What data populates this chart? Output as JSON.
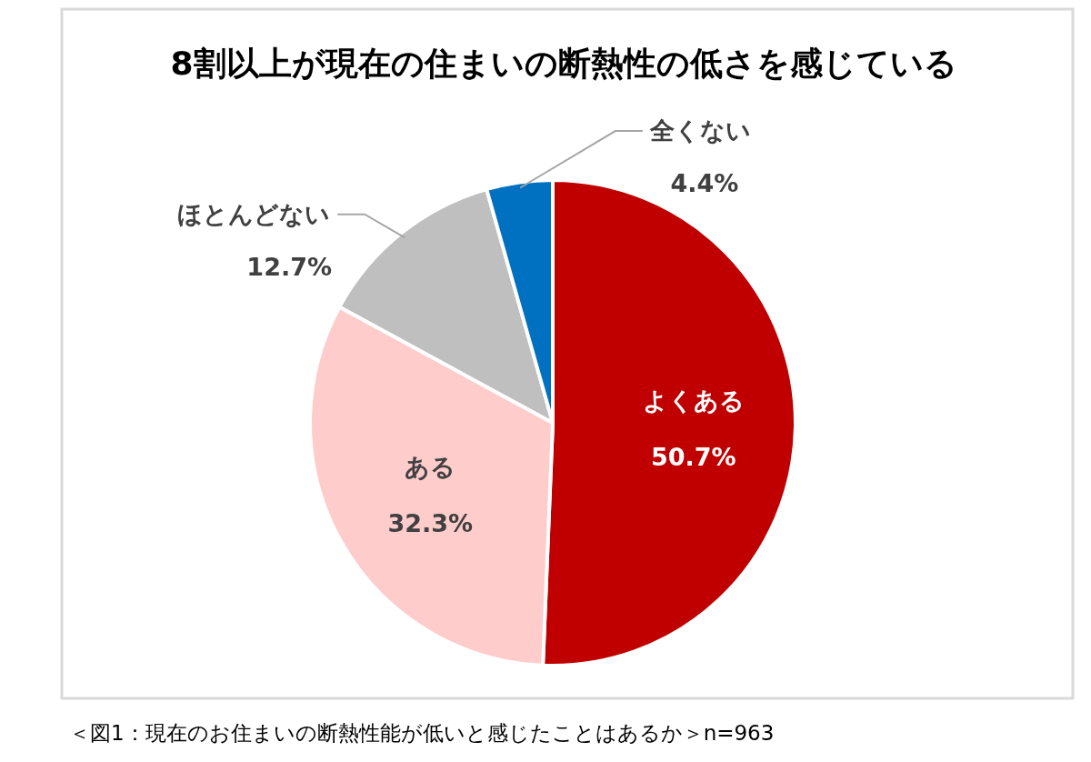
{
  "chart_data": {
    "type": "pie",
    "title": "8割以上が現在の住まいの断熱性の低さを感じている",
    "categories": [
      "よくある",
      "ある",
      "ほとんどない",
      "全くない"
    ],
    "values": [
      50.7,
      32.3,
      12.7,
      4.4
    ],
    "colors": [
      "#c00000",
      "#ffcccc",
      "#bfbfbf",
      "#0070c0"
    ],
    "value_labels": [
      "50.7%",
      "32.3%",
      "12.7%",
      "4.4%"
    ],
    "legend": false,
    "annotations": [
      "＜図1：現在のお住まいの断熱性能が低いと感じたことはあるか＞n=963"
    ]
  }
}
